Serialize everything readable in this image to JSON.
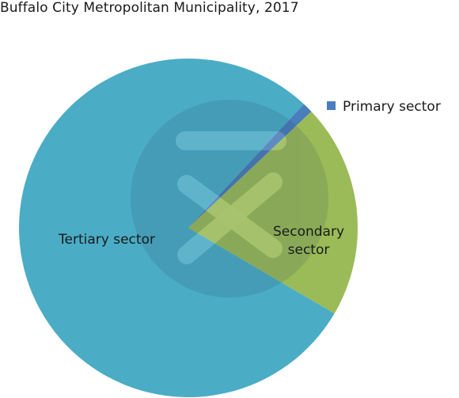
{
  "chart_data": {
    "type": "pie",
    "title": "Buffalo City Metropolitan Municipality, 2017",
    "slices": [
      {
        "label": "Primary sector",
        "value": 1.0,
        "color": "#4a7ebb"
      },
      {
        "label": "Secondary sector",
        "value": 20.5,
        "color": "#9bbb59"
      },
      {
        "label": "Tertiary sector",
        "value": 78.5,
        "color": "#4bacc6"
      }
    ],
    "legend_position": "top-right",
    "legend_entries": [
      "Primary sector"
    ],
    "slice_labels": [
      "Tertiary sector",
      "Secondary\nsector"
    ]
  }
}
